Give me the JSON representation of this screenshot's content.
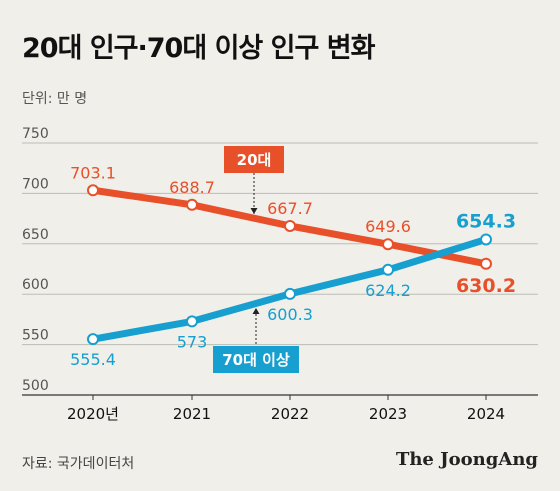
{
  "header": {
    "title": "20대 인구·70대 이상 인구 변화",
    "unit": "단위: 만 명"
  },
  "footer": {
    "source": "자료: 국가데이터처",
    "brand": "The JoongAng"
  },
  "colors": {
    "series_20s": "#e8502a",
    "series_70plus": "#169fcf"
  },
  "chart_data": {
    "type": "line",
    "x": [
      "2020년",
      "2021",
      "2022",
      "2023",
      "2024"
    ],
    "ylim": [
      500,
      750
    ],
    "yticks": [
      500,
      550,
      600,
      650,
      700,
      750
    ],
    "grid": true,
    "series": [
      {
        "name": "20대",
        "values": [
          703.1,
          688.7,
          667.7,
          649.6,
          630.2
        ],
        "labels": [
          "703.1",
          "688.7",
          "667.7",
          "649.6",
          "630.2"
        ]
      },
      {
        "name": "70대 이상",
        "values": [
          555.4,
          573,
          600.3,
          624.2,
          654.3
        ],
        "labels": [
          "555.4",
          "573",
          "600.3",
          "624.2",
          "654.3"
        ]
      }
    ]
  }
}
